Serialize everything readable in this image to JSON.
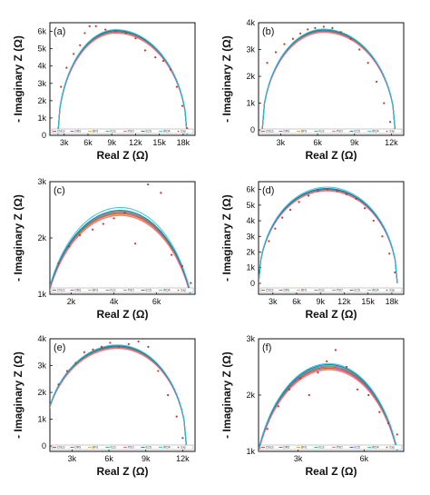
{
  "figure": {
    "legend_labels": [
      "CNLS",
      "DRS",
      "BFS",
      "KLS",
      "PSO",
      "ECS",
      "WOA",
      "Exp"
    ],
    "colors": {
      "CNLS": "#e53935",
      "DRS": "#8e44ad",
      "BFS": "#f39c12",
      "KLS": "#27ae60",
      "PSO": "#f06292",
      "ECS": "#1565c0",
      "WOA": "#26c6da",
      "Exp": "#c0392b"
    },
    "axis_titles": {
      "x": "Real Z (Ω)",
      "y": "- Imaginary Z (Ω)"
    }
  },
  "chart_data": [
    {
      "type": "scatter",
      "panel": "(a)",
      "xlabel": "Real Z (Ω)",
      "ylabel": "- Imaginary Z (Ω)",
      "xlim": [
        1200,
        19500
      ],
      "ylim": [
        0,
        6500
      ],
      "xticks": [
        3000,
        6000,
        9000,
        12000,
        15000,
        18000
      ],
      "xtick_labels": [
        "3k",
        "6k",
        "9k",
        "12k",
        "15k",
        "18k"
      ],
      "yticks": [
        0,
        1000,
        2000,
        3000,
        4000,
        5000,
        6000
      ],
      "ytick_labels": [
        "0",
        "1k",
        "2k",
        "3k",
        "4k",
        "5k",
        "6k"
      ],
      "arc": {
        "x_start": 2200,
        "x_peak": 9500,
        "x_end": 18500,
        "y_peak": 6000
      },
      "experimental": {
        "x": [
          2600,
          3300,
          4200,
          5000,
          5600,
          6200,
          7000,
          8200,
          9500,
          10800,
          12000,
          13200,
          14500,
          15500,
          16400,
          17200,
          17900,
          18500
        ],
        "y": [
          2800,
          3900,
          4700,
          5200,
          5900,
          6300,
          6300,
          6100,
          6000,
          5900,
          5600,
          4900,
          4500,
          4300,
          3800,
          2800,
          1700,
          400
        ]
      },
      "series": [
        {
          "name": "CNLS",
          "y_peak": 6000
        },
        {
          "name": "DRS",
          "y_peak": 5960
        },
        {
          "name": "BFS",
          "y_peak": 5930
        },
        {
          "name": "KLS",
          "y_peak": 6030
        },
        {
          "name": "PSO",
          "y_peak": 5900
        },
        {
          "name": "ECS",
          "y_peak": 6060
        },
        {
          "name": "WOA",
          "y_peak": 6100
        }
      ]
    },
    {
      "type": "scatter",
      "panel": "(b)",
      "xlabel": "Real Z (Ω)",
      "ylabel": "- Imaginary Z (Ω)",
      "xlim": [
        1200,
        13000
      ],
      "ylim": [
        -200,
        4000
      ],
      "xticks": [
        3000,
        6000,
        9000,
        12000
      ],
      "xtick_labels": [
        "3k",
        "6k",
        "9k",
        "12k"
      ],
      "yticks": [
        0,
        1000,
        2000,
        3000,
        4000
      ],
      "ytick_labels": [
        "0",
        "1k",
        "2k",
        "3k",
        "4k"
      ],
      "arc": {
        "x_start": 1500,
        "x_peak": 6500,
        "x_end": 12300,
        "y_peak": 3700
      },
      "experimental": {
        "x": [
          1900,
          2600,
          3300,
          4000,
          4600,
          5200,
          5800,
          6500,
          7200,
          7900,
          8700,
          9400,
          10100,
          10800,
          11400,
          11900
        ],
        "y": [
          2500,
          2900,
          3200,
          3400,
          3600,
          3750,
          3800,
          3850,
          3800,
          3650,
          3400,
          3000,
          2500,
          1800,
          1000,
          300
        ]
      },
      "series": [
        {
          "name": "CNLS",
          "y_peak": 3700
        },
        {
          "name": "DRS",
          "y_peak": 3680
        },
        {
          "name": "BFS",
          "y_peak": 3660
        },
        {
          "name": "KLS",
          "y_peak": 3720
        },
        {
          "name": "PSO",
          "y_peak": 3640
        },
        {
          "name": "ECS",
          "y_peak": 3740
        },
        {
          "name": "WOA",
          "y_peak": 3760
        }
      ]
    },
    {
      "type": "scatter",
      "panel": "(c)",
      "xlabel": "Real Z (Ω)",
      "ylabel": "- Imaginary Z (Ω)",
      "xlim": [
        1000,
        7800
      ],
      "ylim": [
        1000,
        3000
      ],
      "xticks": [
        2000,
        4000,
        6000
      ],
      "xtick_labels": [
        "2k",
        "4k",
        "6k"
      ],
      "yticks": [
        1000,
        2000,
        3000
      ],
      "ytick_labels": [
        "1k",
        "2k",
        "3k"
      ],
      "arc": {
        "x_start": 600,
        "x_peak": 4300,
        "x_end": 7900,
        "y_peak": 2450
      },
      "experimental": {
        "x": [
          1400,
          1900,
          2400,
          3000,
          3500,
          4000,
          4500,
          5000,
          5600,
          6200,
          6700,
          7200,
          7600
        ],
        "y": [
          1550,
          1850,
          2050,
          2150,
          2250,
          2350,
          2450,
          1900,
          2950,
          2800,
          1700,
          1500,
          1200
        ]
      },
      "series": [
        {
          "name": "CNLS",
          "y_peak": 2450
        },
        {
          "name": "DRS",
          "y_peak": 2430
        },
        {
          "name": "BFS",
          "y_peak": 2420
        },
        {
          "name": "KLS",
          "y_peak": 2470
        },
        {
          "name": "PSO",
          "y_peak": 2400
        },
        {
          "name": "ECS",
          "y_peak": 2490
        },
        {
          "name": "WOA",
          "y_peak": 2540
        }
      ]
    },
    {
      "type": "scatter",
      "panel": "(d)",
      "xlabel": "Real Z (Ω)",
      "ylabel": "- Imaginary Z (Ω)",
      "xlim": [
        1200,
        19500
      ],
      "ylim": [
        -700,
        6500
      ],
      "xticks": [
        3000,
        6000,
        9000,
        12000,
        15000,
        18000
      ],
      "xtick_labels": [
        "3k",
        "6k",
        "9k",
        "12k",
        "15k",
        "18k"
      ],
      "yticks": [
        0,
        1000,
        2000,
        3000,
        4000,
        5000,
        6000
      ],
      "ytick_labels": [
        "0",
        "1k",
        "2k",
        "3k",
        "4k",
        "5k",
        "6k"
      ],
      "arc": {
        "x_start": 1200,
        "x_peak": 9800,
        "x_end": 18700,
        "y_peak": 6000
      },
      "experimental": {
        "x": [
          2500,
          3300,
          4200,
          5200,
          6300,
          7500,
          8700,
          9900,
          11100,
          12300,
          13500,
          14600,
          15700,
          16800,
          17700,
          18400
        ],
        "y": [
          2700,
          3500,
          4200,
          4700,
          5200,
          5600,
          5900,
          6000,
          5900,
          5700,
          5400,
          4800,
          4000,
          3000,
          1900,
          700
        ]
      },
      "series": [
        {
          "name": "CNLS",
          "y_peak": 6000
        },
        {
          "name": "DRS",
          "y_peak": 5970
        },
        {
          "name": "BFS",
          "y_peak": 5940
        },
        {
          "name": "KLS",
          "y_peak": 6030
        },
        {
          "name": "PSO",
          "y_peak": 5910
        },
        {
          "name": "ECS",
          "y_peak": 6060
        },
        {
          "name": "WOA",
          "y_peak": 6150
        }
      ]
    },
    {
      "type": "scatter",
      "panel": "(e)",
      "xlabel": "Real Z (Ω)",
      "ylabel": "- Imaginary Z (Ω)",
      "xlim": [
        1200,
        13000
      ],
      "ylim": [
        -200,
        4000
      ],
      "xticks": [
        3000,
        6000,
        9000,
        12000
      ],
      "xtick_labels": [
        "3k",
        "6k",
        "9k",
        "12k"
      ],
      "yticks": [
        0,
        1000,
        2000,
        3000,
        4000
      ],
      "ytick_labels": [
        "0",
        "1k",
        "2k",
        "3k",
        "4k"
      ],
      "arc": {
        "x_start": 700,
        "x_peak": 6700,
        "x_end": 12300,
        "y_peak": 3700
      },
      "experimental": {
        "x": [
          1900,
          2600,
          3300,
          4000,
          4700,
          5400,
          6100,
          6800,
          7600,
          8400,
          9200,
          10000,
          10800,
          11500,
          12000
        ],
        "y": [
          2300,
          2800,
          3100,
          3500,
          3600,
          3700,
          3850,
          3700,
          3800,
          3900,
          3700,
          2800,
          1900,
          1100,
          300
        ]
      },
      "series": [
        {
          "name": "CNLS",
          "y_peak": 3700
        },
        {
          "name": "DRS",
          "y_peak": 3680
        },
        {
          "name": "BFS",
          "y_peak": 3660
        },
        {
          "name": "KLS",
          "y_peak": 3720
        },
        {
          "name": "PSO",
          "y_peak": 3640
        },
        {
          "name": "ECS",
          "y_peak": 3740
        },
        {
          "name": "WOA",
          "y_peak": 3770
        }
      ]
    },
    {
      "type": "scatter",
      "panel": "(f)",
      "xlabel": "Real Z (Ω)",
      "ylabel": "- Imaginary Z (Ω)",
      "xlim": [
        1200,
        7800
      ],
      "ylim": [
        1000,
        3000
      ],
      "xticks": [
        3000,
        6000
      ],
      "xtick_labels": [
        "3k",
        "6k"
      ],
      "yticks": [
        1000,
        2000,
        3000
      ],
      "ytick_labels": [
        "1k",
        "2k",
        "3k"
      ],
      "arc": {
        "x_start": 900,
        "x_peak": 4400,
        "x_end": 7800,
        "y_peak": 2500
      },
      "experimental": {
        "x": [
          1600,
          2100,
          2600,
          3100,
          3500,
          3900,
          4300,
          4700,
          5200,
          5700,
          6200,
          6700,
          7100,
          7500
        ],
        "y": [
          1400,
          1800,
          2100,
          2300,
          2000,
          2400,
          2600,
          2800,
          2500,
          2100,
          2000,
          1700,
          1500,
          1300
        ]
      },
      "series": [
        {
          "name": "CNLS",
          "y_peak": 2500
        },
        {
          "name": "DRS",
          "y_peak": 2480
        },
        {
          "name": "BFS",
          "y_peak": 2460
        },
        {
          "name": "KLS",
          "y_peak": 2520
        },
        {
          "name": "PSO",
          "y_peak": 2450
        },
        {
          "name": "ECS",
          "y_peak": 2540
        },
        {
          "name": "WOA",
          "y_peak": 2560
        }
      ]
    }
  ]
}
